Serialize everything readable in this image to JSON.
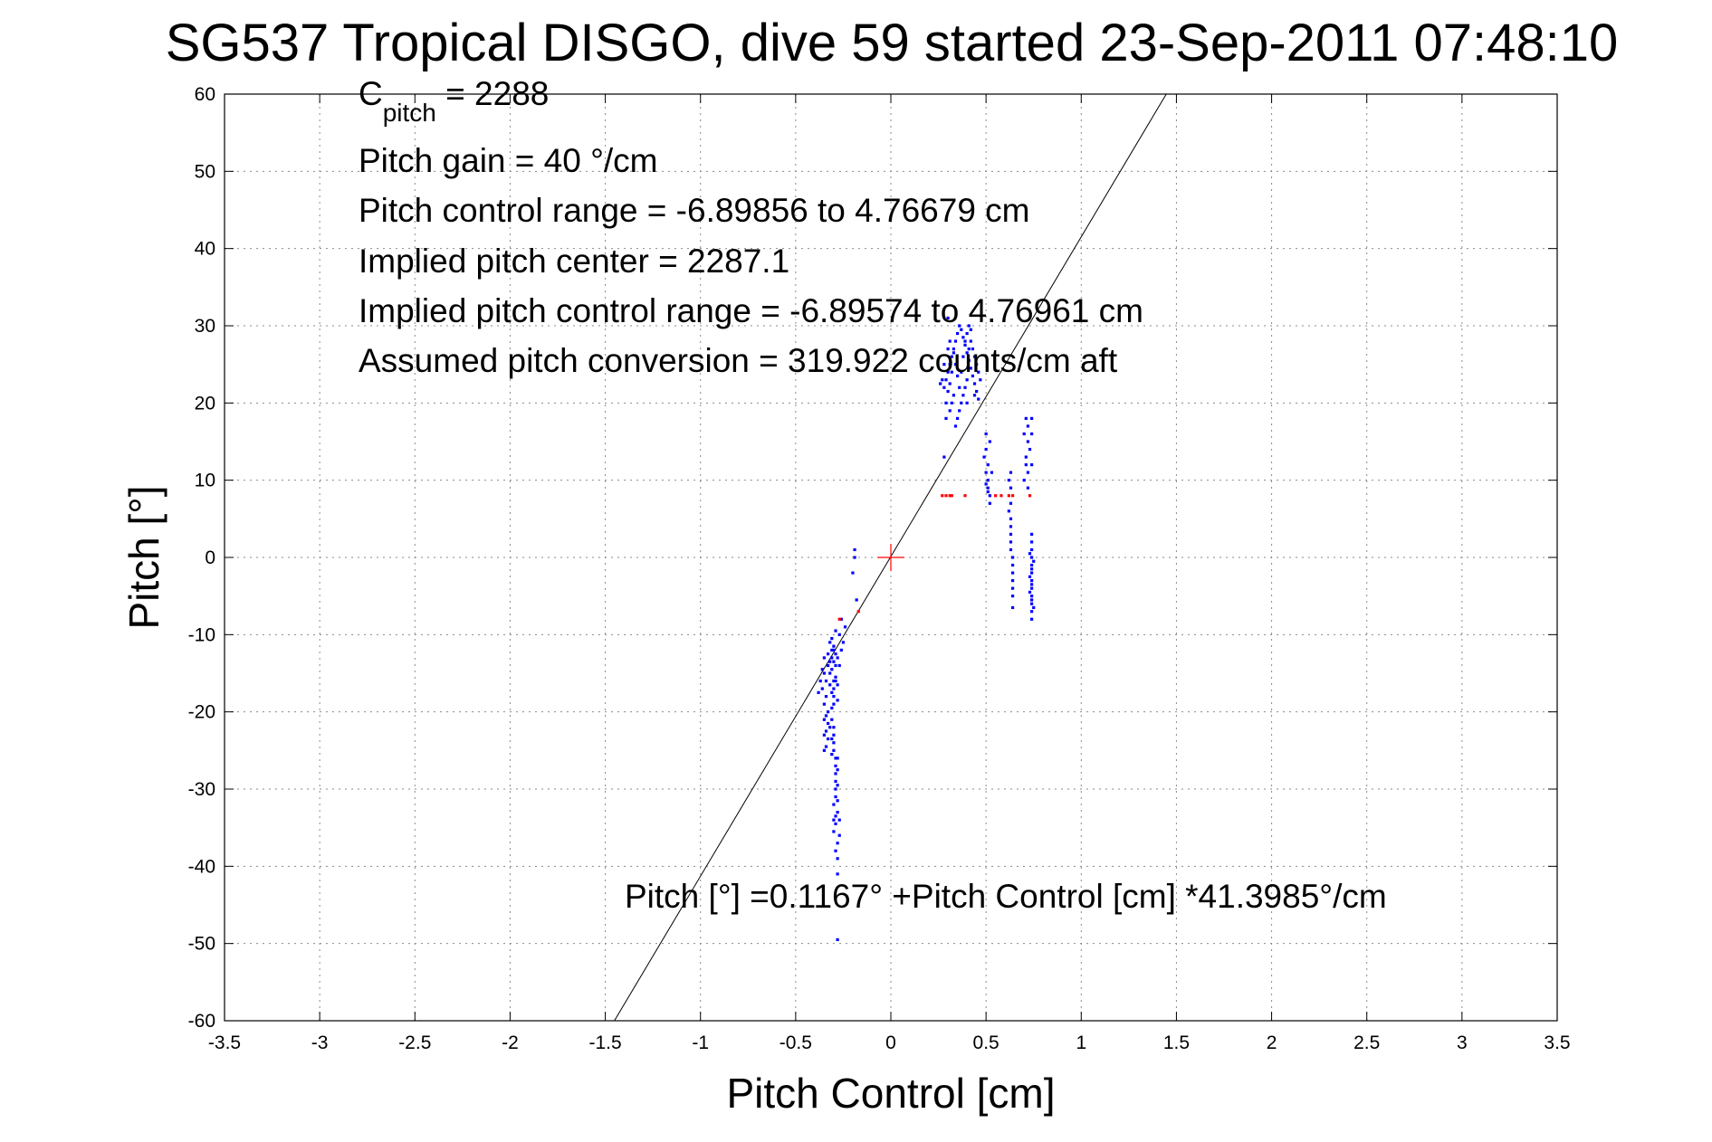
{
  "chart_data": {
    "type": "scatter",
    "title": "SG537 Tropical DISGO, dive 59 started 23-Sep-2011 07:48:10",
    "xlabel": "Pitch Control [cm]",
    "ylabel": "Pitch [°]",
    "xlim": [
      -3.5,
      3.5
    ],
    "ylim": [
      -60,
      60
    ],
    "xticks": [
      -3.5,
      -3,
      -2.5,
      -2,
      -1.5,
      -1,
      -0.5,
      0,
      0.5,
      1,
      1.5,
      2,
      2.5,
      3,
      3.5
    ],
    "xtick_labels": [
      "-3.5",
      "-3",
      "-2.5",
      "-2",
      "-1.5",
      "-1",
      "-0.5",
      "0",
      "0.5",
      "1",
      "1.5",
      "2",
      "2.5",
      "3",
      "3.5"
    ],
    "yticks": [
      -60,
      -50,
      -40,
      -30,
      -20,
      -10,
      0,
      10,
      20,
      30,
      40,
      50,
      60
    ],
    "ytick_labels": [
      "-60",
      "-50",
      "-40",
      "-30",
      "-20",
      "-10",
      "0",
      "10",
      "20",
      "30",
      "40",
      "50",
      "60"
    ],
    "grid": true,
    "fit_line": {
      "intercept": 0.1167,
      "slope": 41.3985,
      "color": "#000000"
    },
    "center_marker": {
      "x": 0,
      "y": 0,
      "color": "#ff0000"
    },
    "annotations": {
      "c_pitch_main": "C",
      "c_pitch_sub": "pitch",
      "c_pitch_rest": " = 2288",
      "pitch_gain": "Pitch gain = 40 °/cm",
      "pitch_control_range": "Pitch control range = -6.89856 to 4.76679 cm",
      "implied_center": "Implied pitch center = 2287.1",
      "implied_range": "Implied pitch control range = -6.89574 to 4.76961 cm",
      "assumed_conversion": "Assumed pitch conversion = 319.922 counts/cm aft",
      "fit_equation": "Pitch [°] =0.1167° +Pitch Control [cm] *41.3985°/cm"
    },
    "series": [
      {
        "color": "#0000ff",
        "points": [
          [
            -0.3,
            -12
          ],
          [
            -0.31,
            -13
          ],
          [
            -0.29,
            -14
          ],
          [
            -0.32,
            -15
          ],
          [
            -0.3,
            -16
          ],
          [
            -0.28,
            -13
          ],
          [
            -0.33,
            -12.5
          ],
          [
            -0.31,
            -14.5
          ],
          [
            -0.29,
            -15.5
          ],
          [
            -0.3,
            -17
          ],
          [
            -0.34,
            -16
          ],
          [
            -0.35,
            -15
          ],
          [
            -0.36,
            -17
          ],
          [
            -0.34,
            -18
          ],
          [
            -0.33,
            -14
          ],
          [
            -0.32,
            -11
          ],
          [
            -0.31,
            -10.5
          ],
          [
            -0.3,
            -11.5
          ],
          [
            -0.29,
            -12.5
          ],
          [
            -0.28,
            -16.5
          ],
          [
            -0.3,
            -18
          ],
          [
            -0.31,
            -17.5
          ],
          [
            -0.32,
            -13.5
          ],
          [
            -0.27,
            -14
          ],
          [
            -0.28,
            -18.5
          ],
          [
            -0.26,
            -12
          ],
          [
            -0.25,
            -11
          ],
          [
            -0.27,
            -10
          ],
          [
            -0.29,
            -9.5
          ],
          [
            -0.3,
            -19
          ],
          [
            -0.33,
            -20
          ],
          [
            -0.31,
            -19.5
          ],
          [
            -0.35,
            -13
          ],
          [
            -0.36,
            -14.5
          ],
          [
            -0.37,
            -16
          ],
          [
            -0.38,
            -17.5
          ],
          [
            -0.29,
            -16
          ],
          [
            -0.3,
            -13.5
          ],
          [
            -0.31,
            -12
          ],
          [
            -0.32,
            -16.5
          ],
          [
            -0.3,
            -22
          ],
          [
            -0.3,
            -23
          ],
          [
            -0.3,
            -24
          ],
          [
            -0.3,
            -25
          ],
          [
            -0.29,
            -26
          ],
          [
            -0.29,
            -27
          ],
          [
            -0.29,
            -28
          ],
          [
            -0.29,
            -29
          ],
          [
            -0.29,
            -30
          ],
          [
            -0.29,
            -31
          ],
          [
            -0.28,
            -27.5
          ],
          [
            -0.28,
            -29.5
          ],
          [
            -0.28,
            -31.5
          ],
          [
            -0.28,
            -33
          ],
          [
            -0.28,
            -26
          ],
          [
            -0.3,
            -32
          ],
          [
            -0.3,
            -34
          ],
          [
            -0.31,
            -21
          ],
          [
            -0.31,
            -23.5
          ],
          [
            -0.31,
            -25.5
          ],
          [
            -0.35,
            -19
          ],
          [
            -0.35,
            -21
          ],
          [
            -0.35,
            -23
          ],
          [
            -0.35,
            -25
          ],
          [
            -0.34,
            -20.5
          ],
          [
            -0.34,
            -22.5
          ],
          [
            -0.34,
            -24.5
          ],
          [
            -0.33,
            -21.5
          ],
          [
            -0.33,
            -23.5
          ],
          [
            -0.32,
            -22
          ],
          [
            -0.29,
            -33.5
          ],
          [
            -0.29,
            -34.5
          ],
          [
            -0.28,
            -37
          ],
          [
            -0.28,
            -39
          ],
          [
            -0.28,
            -41
          ],
          [
            -0.29,
            -38
          ],
          [
            -0.27,
            -36
          ],
          [
            -0.27,
            -34
          ],
          [
            -0.3,
            -35.5
          ],
          [
            -0.28,
            -49.5
          ],
          [
            -0.19,
            1
          ],
          [
            -0.19,
            0
          ],
          [
            -0.18,
            -5.5
          ],
          [
            -0.2,
            -2
          ],
          [
            -0.26,
            -8
          ],
          [
            -0.24,
            -9
          ],
          [
            0.28,
            22
          ],
          [
            0.29,
            23
          ],
          [
            0.3,
            24
          ],
          [
            0.31,
            25
          ],
          [
            0.32,
            26
          ],
          [
            0.33,
            27
          ],
          [
            0.34,
            28
          ],
          [
            0.35,
            29
          ],
          [
            0.36,
            30
          ],
          [
            0.37,
            29.5
          ],
          [
            0.38,
            28.5
          ],
          [
            0.39,
            27.5
          ],
          [
            0.4,
            26.5
          ],
          [
            0.41,
            25.5
          ],
          [
            0.42,
            24.5
          ],
          [
            0.43,
            23.5
          ],
          [
            0.44,
            22.5
          ],
          [
            0.45,
            21.5
          ],
          [
            0.46,
            20.5
          ],
          [
            0.4,
            29
          ],
          [
            0.41,
            30
          ],
          [
            0.42,
            29.5
          ],
          [
            0.39,
            28
          ],
          [
            0.38,
            26
          ],
          [
            0.37,
            24
          ],
          [
            0.36,
            22
          ],
          [
            0.35,
            23.5
          ],
          [
            0.34,
            25
          ],
          [
            0.33,
            26.5
          ],
          [
            0.32,
            24
          ],
          [
            0.31,
            22.5
          ],
          [
            0.3,
            21.5
          ],
          [
            0.29,
            20
          ],
          [
            0.28,
            25
          ],
          [
            0.27,
            23
          ],
          [
            0.26,
            22.5
          ],
          [
            0.3,
            27
          ],
          [
            0.31,
            28
          ],
          [
            0.44,
            26
          ],
          [
            0.45,
            25
          ],
          [
            0.46,
            24
          ],
          [
            0.47,
            23
          ],
          [
            0.43,
            27
          ],
          [
            0.42,
            28
          ],
          [
            0.41,
            27
          ],
          [
            0.4,
            23
          ],
          [
            0.39,
            22
          ],
          [
            0.38,
            21
          ],
          [
            0.37,
            20
          ],
          [
            0.36,
            19
          ],
          [
            0.35,
            18
          ],
          [
            0.34,
            17
          ],
          [
            0.33,
            21
          ],
          [
            0.32,
            20
          ],
          [
            0.31,
            19
          ],
          [
            0.29,
            18
          ],
          [
            0.28,
            13
          ],
          [
            0.3,
            31
          ],
          [
            0.4,
            20
          ],
          [
            0.44,
            21
          ],
          [
            0.5,
            16
          ],
          [
            0.5,
            14
          ],
          [
            0.51,
            12
          ],
          [
            0.51,
            10
          ],
          [
            0.52,
            8
          ],
          [
            0.52,
            7
          ],
          [
            0.5,
            11
          ],
          [
            0.51,
            9
          ],
          [
            0.49,
            13
          ],
          [
            0.52,
            15
          ],
          [
            0.53,
            11
          ],
          [
            0.5,
            9.5
          ],
          [
            0.51,
            8.5
          ],
          [
            0.63,
            11
          ],
          [
            0.63,
            9
          ],
          [
            0.63,
            7
          ],
          [
            0.63,
            5
          ],
          [
            0.63,
            3
          ],
          [
            0.63,
            1
          ],
          [
            0.64,
            -1
          ],
          [
            0.64,
            -3
          ],
          [
            0.64,
            -5
          ],
          [
            0.64,
            -6.5
          ],
          [
            0.63,
            4
          ],
          [
            0.63,
            2
          ],
          [
            0.64,
            0
          ],
          [
            0.64,
            -2
          ],
          [
            0.64,
            -4
          ],
          [
            0.62,
            6
          ],
          [
            0.62,
            10
          ],
          [
            0.71,
            18
          ],
          [
            0.72,
            17
          ],
          [
            0.72,
            15
          ],
          [
            0.71,
            13
          ],
          [
            0.72,
            11
          ],
          [
            0.71,
            12
          ],
          [
            0.73,
            14
          ],
          [
            0.74,
            18
          ],
          [
            0.74,
            16
          ],
          [
            0.74,
            12
          ],
          [
            0.7,
            16
          ],
          [
            0.7,
            10
          ],
          [
            0.72,
            9
          ],
          [
            0.74,
            3
          ],
          [
            0.74,
            2
          ],
          [
            0.74,
            1
          ],
          [
            0.74,
            0
          ],
          [
            0.74,
            -1
          ],
          [
            0.74,
            -2
          ],
          [
            0.74,
            -3
          ],
          [
            0.74,
            -4
          ],
          [
            0.74,
            -5
          ],
          [
            0.74,
            -6
          ],
          [
            0.74,
            -7
          ],
          [
            0.74,
            -8
          ],
          [
            0.74,
            -1.5
          ],
          [
            0.74,
            -3.5
          ],
          [
            0.74,
            -5.5
          ],
          [
            0.73,
            -2.5
          ],
          [
            0.73,
            -4.5
          ],
          [
            0.73,
            0.5
          ],
          [
            0.75,
            -0.5
          ],
          [
            0.75,
            -6.5
          ]
        ]
      },
      {
        "color": "#ff0000",
        "points": [
          [
            0.27,
            8
          ],
          [
            0.29,
            8
          ],
          [
            0.31,
            8
          ],
          [
            0.32,
            8
          ],
          [
            0.39,
            8
          ],
          [
            0.55,
            8
          ],
          [
            0.58,
            8
          ],
          [
            0.62,
            8
          ],
          [
            0.64,
            8
          ],
          [
            0.73,
            8
          ],
          [
            -0.27,
            -8
          ],
          [
            -0.17,
            -7
          ]
        ]
      }
    ]
  }
}
